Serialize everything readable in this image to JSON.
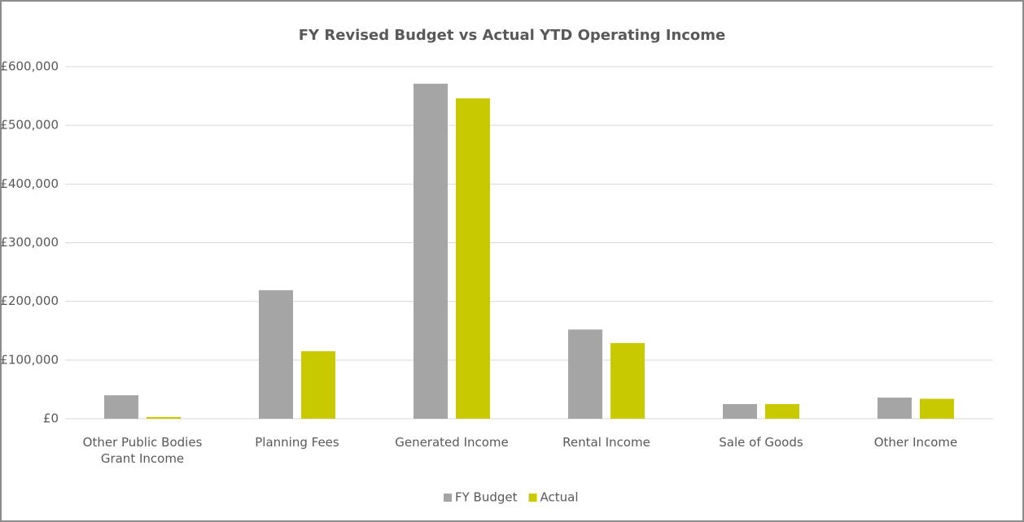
{
  "chart_data": {
    "type": "bar",
    "title": "FY Revised Budget vs Actual YTD Operating Income",
    "categories": [
      "Other Public Bodies Grant Income",
      "Planning Fees",
      "Generated Income",
      "Rental Income",
      "Sale of Goods",
      "Other Income"
    ],
    "series": [
      {
        "name": "FY Budget",
        "color": "#a5a5a5",
        "values": [
          40000,
          219000,
          571000,
          152000,
          25000,
          36000
        ]
      },
      {
        "name": "Actual",
        "color": "#c9c900",
        "values": [
          3000,
          115000,
          546000,
          129000,
          25000,
          34000
        ]
      }
    ],
    "ylim": [
      0,
      600000
    ],
    "yticks": [
      {
        "value": 0,
        "label": "£0"
      },
      {
        "value": 100000,
        "label": "£100,000"
      },
      {
        "value": 200000,
        "label": "£200,000"
      },
      {
        "value": 300000,
        "label": "£300,000"
      },
      {
        "value": 400000,
        "label": "£400,000"
      },
      {
        "value": 500000,
        "label": "£500,000"
      },
      {
        "value": 600000,
        "label": "£600,000"
      }
    ],
    "grid": true,
    "legend": "bottom"
  }
}
